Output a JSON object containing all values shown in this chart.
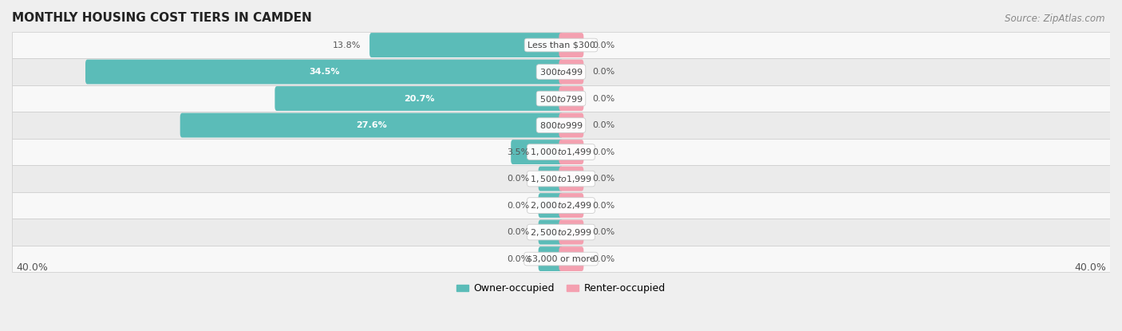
{
  "title": "MONTHLY HOUSING COST TIERS IN CAMDEN",
  "source": "Source: ZipAtlas.com",
  "categories": [
    "Less than $300",
    "$300 to $499",
    "$500 to $799",
    "$800 to $999",
    "$1,000 to $1,499",
    "$1,500 to $1,999",
    "$2,000 to $2,499",
    "$2,500 to $2,999",
    "$3,000 or more"
  ],
  "owner_values": [
    13.8,
    34.5,
    20.7,
    27.6,
    3.5,
    0.0,
    0.0,
    0.0,
    0.0
  ],
  "renter_values": [
    0.0,
    0.0,
    0.0,
    0.0,
    0.0,
    0.0,
    0.0,
    0.0,
    0.0
  ],
  "owner_color": "#5bbcb8",
  "renter_color": "#f4a0b0",
  "axis_max": 40.0,
  "background_color": "#efefef",
  "row_colors": [
    "#f8f8f8",
    "#ebebeb"
  ],
  "bar_height": 0.62,
  "title_fontsize": 11,
  "source_fontsize": 8.5,
  "label_fontsize": 8.0,
  "category_fontsize": 8.0
}
